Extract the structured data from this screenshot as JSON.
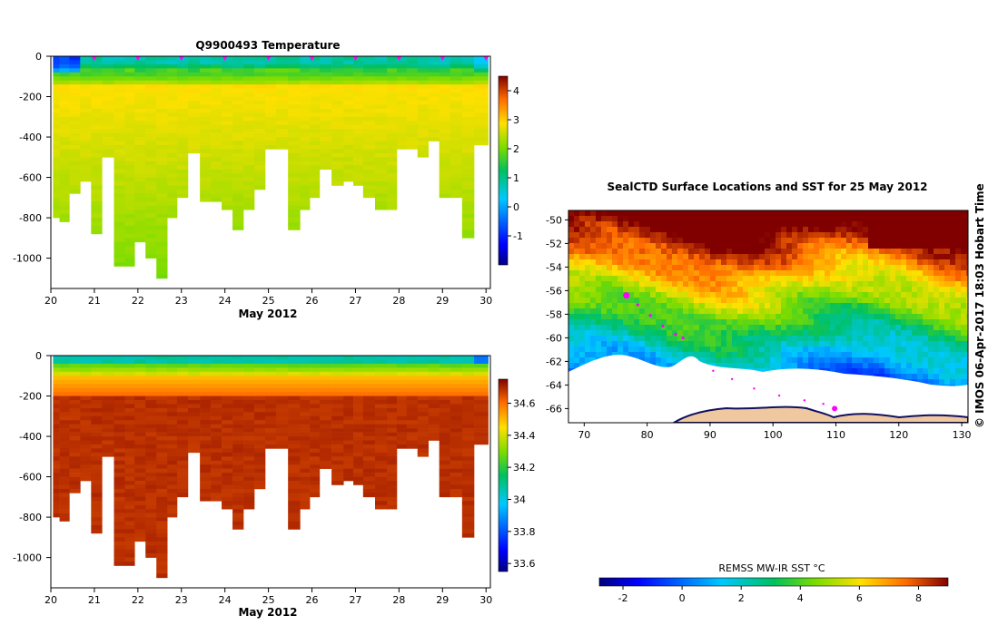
{
  "chart_data": [
    {
      "type": "heatmap",
      "name": "temperature-section",
      "title": "Q9900493  Temperature",
      "xlabel": "May 2012",
      "ylabel": "",
      "x_ticks": [
        "20",
        "21",
        "22",
        "23",
        "24",
        "25",
        "26",
        "27",
        "28",
        "29",
        "30"
      ],
      "y_ticks": [
        "0",
        "-200",
        "-400",
        "-600",
        "-800",
        "-1000"
      ],
      "xlim": [
        20,
        30.1
      ],
      "ylim": [
        -1150,
        0
      ],
      "colorbar": {
        "min": -2,
        "max": 4.5,
        "ticks": [
          "-1",
          "0",
          "1",
          "2",
          "3",
          "4"
        ]
      },
      "profile_days": [
        20.1,
        20.3,
        20.55,
        20.8,
        21.05,
        21.3,
        21.6,
        21.8,
        22.05,
        22.3,
        22.55,
        22.8,
        23.0,
        23.3,
        23.55,
        23.8,
        24.05,
        24.3,
        24.55,
        24.8,
        25.05,
        25.3,
        25.6,
        25.85,
        26.05,
        26.3,
        26.6,
        26.85,
        27.05,
        27.3,
        27.6,
        27.85,
        28.05,
        28.3,
        28.55,
        28.8,
        29.05,
        29.3,
        29.6,
        29.85
      ],
      "profile_max_depth": [
        800,
        810,
        670,
        610,
        880,
        500,
        1030,
        1030,
        920,
        1000,
        1100,
        800,
        700,
        480,
        720,
        720,
        760,
        860,
        760,
        660,
        460,
        460,
        860,
        760,
        700,
        560,
        640,
        620,
        640,
        700,
        760,
        760,
        460,
        460,
        500,
        410,
        700,
        700,
        890,
        440
      ],
      "surface_temp": -1.0,
      "subsurface_temp": 2.8,
      "profile_markers": [
        21.0,
        22.0,
        23.0,
        24.0,
        25.0,
        26.0,
        27.0,
        28.0,
        29.0,
        30.0
      ]
    },
    {
      "type": "heatmap",
      "name": "salinity-section",
      "title": "",
      "xlabel": "May 2012",
      "ylabel": "",
      "x_ticks": [
        "20",
        "21",
        "22",
        "23",
        "24",
        "25",
        "26",
        "27",
        "28",
        "29",
        "30"
      ],
      "y_ticks": [
        "0",
        "-200",
        "-400",
        "-600",
        "-800",
        "-1000"
      ],
      "xlim": [
        20,
        30.1
      ],
      "ylim": [
        -1150,
        0
      ],
      "colorbar": {
        "min": 33.55,
        "max": 34.75,
        "ticks": [
          "33.6",
          "33.8",
          "34",
          "34.2",
          "34.4",
          "34.6"
        ]
      },
      "surface_sal": 34.05,
      "deep_sal": 34.7
    },
    {
      "type": "heatmap",
      "name": "sst-map",
      "title": "SealCTD Surface Locations and SST for 25 May 2012",
      "xlabel": "",
      "ylabel": "",
      "x_ticks": [
        "70",
        "80",
        "90",
        "100",
        "110",
        "120",
        "130"
      ],
      "y_ticks": [
        "-50",
        "-52",
        "-54",
        "-56",
        "-58",
        "-60",
        "-62",
        "-64",
        "-66"
      ],
      "xlim": [
        67.5,
        131
      ],
      "ylim": [
        -67.2,
        -49.2
      ],
      "colorbar": {
        "label": "REMSS MW-IR SST °C",
        "min": -2.8,
        "max": 9,
        "ticks": [
          "-2",
          "0",
          "2",
          "4",
          "6",
          "8"
        ]
      },
      "track_lon": [
        76.7,
        78.5,
        80.5,
        82.5,
        84.5,
        85.7
      ],
      "track_lat": [
        -56.4,
        -57.2,
        -58.1,
        -59.0,
        -59.7,
        -60.0
      ],
      "track2_lon": [
        90.5,
        93.5,
        97.0,
        101.0,
        105.0,
        108.0,
        109.8
      ],
      "track2_lat": [
        -62.8,
        -63.5,
        -64.3,
        -64.9,
        -65.3,
        -65.6,
        -66.0
      ],
      "copyright": "© IMOS 06-Apr-2017 18:03 Hobart Time"
    }
  ]
}
